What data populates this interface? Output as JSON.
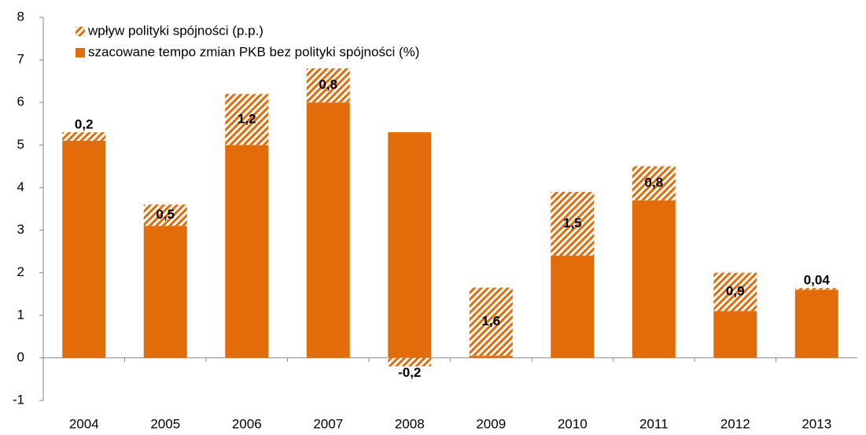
{
  "chart_data": {
    "type": "stacked_bar",
    "categories": [
      "2004",
      "2005",
      "2006",
      "2007",
      "2008",
      "2009",
      "2010",
      "2011",
      "2012",
      "2013"
    ],
    "series": [
      {
        "name": "szacowane tempo zmian PKB bez polityki spójności (%)",
        "color": "#e36c0a",
        "hatch": false,
        "values": [
          5.1,
          3.1,
          5.0,
          6.0,
          5.3,
          0.05,
          2.4,
          3.7,
          1.1,
          1.6
        ]
      },
      {
        "name": "wpływ polityki spójności (p.p.)",
        "color": "#e36c0a",
        "hatch": true,
        "values": [
          0.2,
          0.5,
          1.2,
          0.8,
          -0.2,
          1.6,
          1.5,
          0.8,
          0.9,
          0.04
        ],
        "value_labels": [
          "0,2",
          "0,5",
          "1,2",
          "0,8",
          "-0,2",
          "1,6",
          "1,5",
          "0,8",
          "0,9",
          "0,04"
        ]
      }
    ],
    "ylim": [
      -1,
      8
    ],
    "yticks": [
      -1,
      0,
      1,
      2,
      3,
      4,
      5,
      6,
      7,
      8
    ],
    "grid": false,
    "legend": "top-left"
  }
}
